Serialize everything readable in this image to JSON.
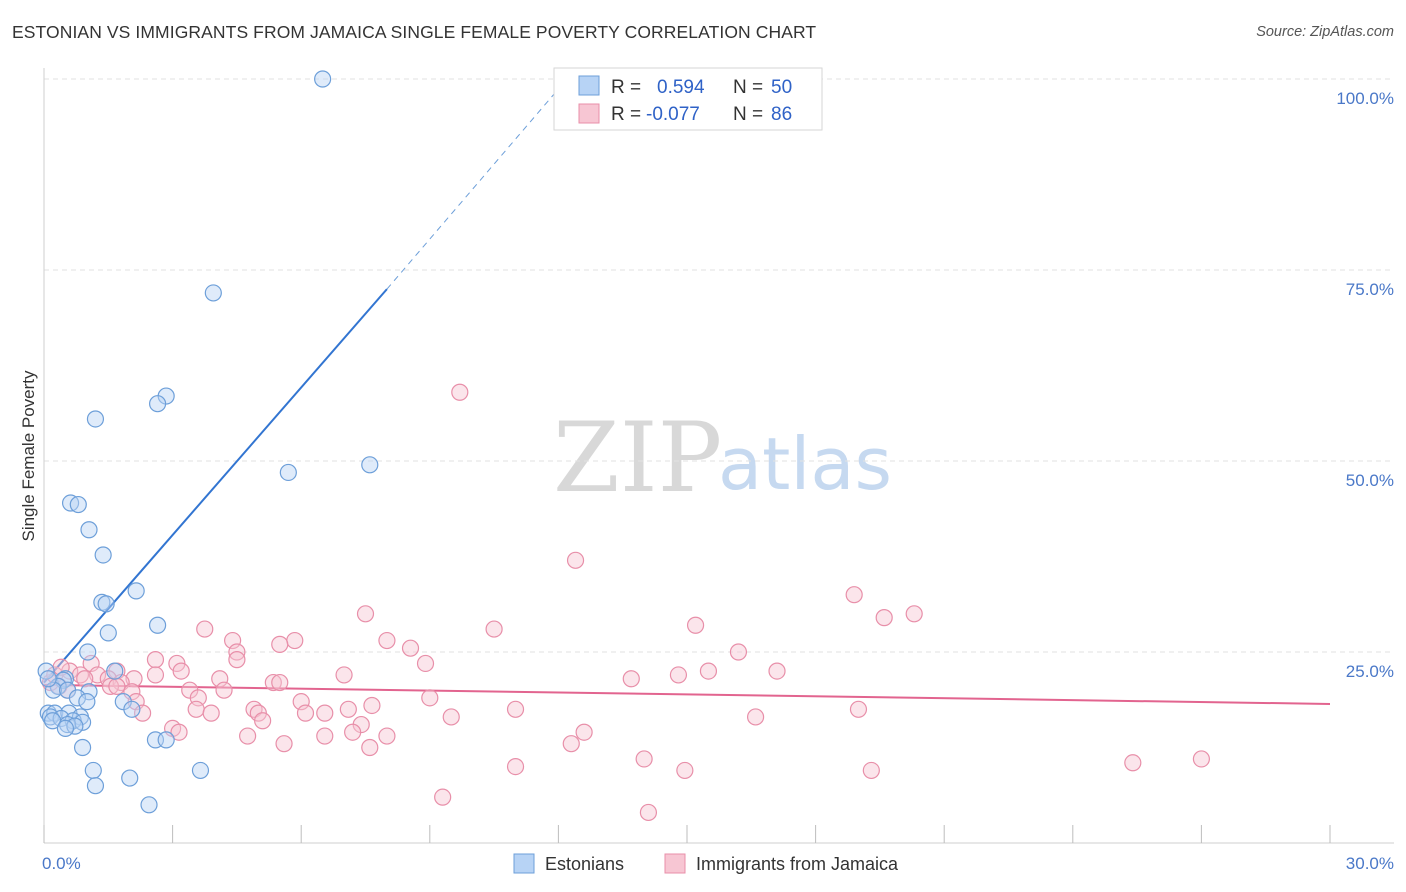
{
  "title": "ESTONIAN VS IMMIGRANTS FROM JAMAICA SINGLE FEMALE POVERTY CORRELATION CHART",
  "source": "Source: ZipAtlas.com",
  "watermark": {
    "zip": "ZIP",
    "atlas": "atlas"
  },
  "colors": {
    "blue_fill": "#b7d3f5",
    "blue_stroke": "#6d9fd9",
    "blue_line": "#3275d1",
    "pink_fill": "#f7c6d3",
    "pink_stroke": "#e88fa9",
    "pink_line": "#e2648f",
    "grid": "#e2e2e2",
    "tick_label": "#4a78c8"
  },
  "legend_top": {
    "rows": [
      {
        "r_label": "R =",
        "r_value": "0.594",
        "n_label": "N =",
        "n_value": "50"
      },
      {
        "r_label": "R =",
        "r_value": "-0.077",
        "n_label": "N =",
        "n_value": "86"
      }
    ]
  },
  "chart_data": {
    "type": "scatter",
    "title": "ESTONIAN VS IMMIGRANTS FROM JAMAICA SINGLE FEMALE POVERTY CORRELATION CHART",
    "xlabel": "",
    "ylabel": "Single Female Poverty",
    "xlim": [
      0,
      30
    ],
    "ylim": [
      0,
      105
    ],
    "x_tick_labels": [
      "0.0%",
      "30.0%"
    ],
    "y_ticks": [
      25,
      50,
      75,
      100
    ],
    "y_tick_labels": [
      "25.0%",
      "50.0%",
      "75.0%",
      "100.0%"
    ],
    "grid": true,
    "legend_position": "bottom",
    "series": [
      {
        "name": "Estonians",
        "color": "#6d9fd9",
        "trend": {
          "x": [
            0.0,
            8.0
          ],
          "y": [
            21.0,
            72.5
          ],
          "dashed_to": [
            12.2,
            100.0
          ]
        },
        "points": [
          [
            6.5,
            100.0
          ],
          [
            3.95,
            72.0
          ],
          [
            2.85,
            58.5
          ],
          [
            2.65,
            57.5
          ],
          [
            1.2,
            55.5
          ],
          [
            5.7,
            48.5
          ],
          [
            7.6,
            49.5
          ],
          [
            0.62,
            44.5
          ],
          [
            0.8,
            44.3
          ],
          [
            1.05,
            41.0
          ],
          [
            1.38,
            37.7
          ],
          [
            2.15,
            33.0
          ],
          [
            1.35,
            31.5
          ],
          [
            1.45,
            31.3
          ],
          [
            1.5,
            27.5
          ],
          [
            2.65,
            28.5
          ],
          [
            1.02,
            25.0
          ],
          [
            1.65,
            22.5
          ],
          [
            0.5,
            21.5
          ],
          [
            0.45,
            21.3
          ],
          [
            0.33,
            20.5
          ],
          [
            0.22,
            20.0
          ],
          [
            0.55,
            20.0
          ],
          [
            1.05,
            19.8
          ],
          [
            0.78,
            19.0
          ],
          [
            1.0,
            18.5
          ],
          [
            1.85,
            18.5
          ],
          [
            2.05,
            17.5
          ],
          [
            0.1,
            17.0
          ],
          [
            0.25,
            17.0
          ],
          [
            0.15,
            16.5
          ],
          [
            0.58,
            17.0
          ],
          [
            0.85,
            16.5
          ],
          [
            0.4,
            16.3
          ],
          [
            0.2,
            16.0
          ],
          [
            0.68,
            16.0
          ],
          [
            0.9,
            15.8
          ],
          [
            0.55,
            15.5
          ],
          [
            0.72,
            15.3
          ],
          [
            0.5,
            15.0
          ],
          [
            2.6,
            13.5
          ],
          [
            2.85,
            13.5
          ],
          [
            0.9,
            12.5
          ],
          [
            1.15,
            9.5
          ],
          [
            2.0,
            8.5
          ],
          [
            3.65,
            9.5
          ],
          [
            1.2,
            7.5
          ],
          [
            2.45,
            5.0
          ],
          [
            0.05,
            22.5
          ],
          [
            0.1,
            21.5
          ]
        ]
      },
      {
        "name": "Immigrants from Jamaica",
        "color": "#e88fa9",
        "trend": {
          "x": [
            0.0,
            30.0
          ],
          "y": [
            20.7,
            18.2
          ]
        },
        "points": [
          [
            9.7,
            59.0
          ],
          [
            12.4,
            37.0
          ],
          [
            18.9,
            32.5
          ],
          [
            19.6,
            29.5
          ],
          [
            20.3,
            30.0
          ],
          [
            7.5,
            30.0
          ],
          [
            10.5,
            28.0
          ],
          [
            15.2,
            28.5
          ],
          [
            3.75,
            28.0
          ],
          [
            5.85,
            26.5
          ],
          [
            5.5,
            26.0
          ],
          [
            4.4,
            26.5
          ],
          [
            8.0,
            26.5
          ],
          [
            8.55,
            25.5
          ],
          [
            4.5,
            25.0
          ],
          [
            16.2,
            25.0
          ],
          [
            4.5,
            24.0
          ],
          [
            8.9,
            23.5
          ],
          [
            3.1,
            23.5
          ],
          [
            2.6,
            24.0
          ],
          [
            17.1,
            22.5
          ],
          [
            1.1,
            23.5
          ],
          [
            1.7,
            22.5
          ],
          [
            2.6,
            22.0
          ],
          [
            3.2,
            22.5
          ],
          [
            0.6,
            22.5
          ],
          [
            0.85,
            22.0
          ],
          [
            1.25,
            22.0
          ],
          [
            0.95,
            21.5
          ],
          [
            1.5,
            21.5
          ],
          [
            13.7,
            21.5
          ],
          [
            14.8,
            22.0
          ],
          [
            15.5,
            22.5
          ],
          [
            4.1,
            21.5
          ],
          [
            7.0,
            22.0
          ],
          [
            5.35,
            21.0
          ],
          [
            5.5,
            21.0
          ],
          [
            2.1,
            21.5
          ],
          [
            1.8,
            21.0
          ],
          [
            1.55,
            20.5
          ],
          [
            1.7,
            20.5
          ],
          [
            3.4,
            20.0
          ],
          [
            4.2,
            20.0
          ],
          [
            0.35,
            20.5
          ],
          [
            0.55,
            20.0
          ],
          [
            2.05,
            19.8
          ],
          [
            3.6,
            19.0
          ],
          [
            9.0,
            19.0
          ],
          [
            2.15,
            18.5
          ],
          [
            6.0,
            18.5
          ],
          [
            7.65,
            18.0
          ],
          [
            7.1,
            17.5
          ],
          [
            3.55,
            17.5
          ],
          [
            4.9,
            17.5
          ],
          [
            5.0,
            17.0
          ],
          [
            6.1,
            17.0
          ],
          [
            6.55,
            17.0
          ],
          [
            11.0,
            17.5
          ],
          [
            19.0,
            17.5
          ],
          [
            2.3,
            17.0
          ],
          [
            3.9,
            17.0
          ],
          [
            9.5,
            16.5
          ],
          [
            16.6,
            16.5
          ],
          [
            7.4,
            15.5
          ],
          [
            5.1,
            16.0
          ],
          [
            4.75,
            14.0
          ],
          [
            6.55,
            14.0
          ],
          [
            7.2,
            14.5
          ],
          [
            8.0,
            14.0
          ],
          [
            12.6,
            14.5
          ],
          [
            3.0,
            15.0
          ],
          [
            3.15,
            14.5
          ],
          [
            5.6,
            13.0
          ],
          [
            7.6,
            12.5
          ],
          [
            12.3,
            13.0
          ],
          [
            11.0,
            10.0
          ],
          [
            14.0,
            11.0
          ],
          [
            14.95,
            9.5
          ],
          [
            19.3,
            9.5
          ],
          [
            25.4,
            10.5
          ],
          [
            27.0,
            11.0
          ],
          [
            9.3,
            6.0
          ],
          [
            14.1,
            4.0
          ],
          [
            0.15,
            21.0
          ],
          [
            0.25,
            22.0
          ],
          [
            0.4,
            23.0
          ]
        ]
      }
    ]
  }
}
